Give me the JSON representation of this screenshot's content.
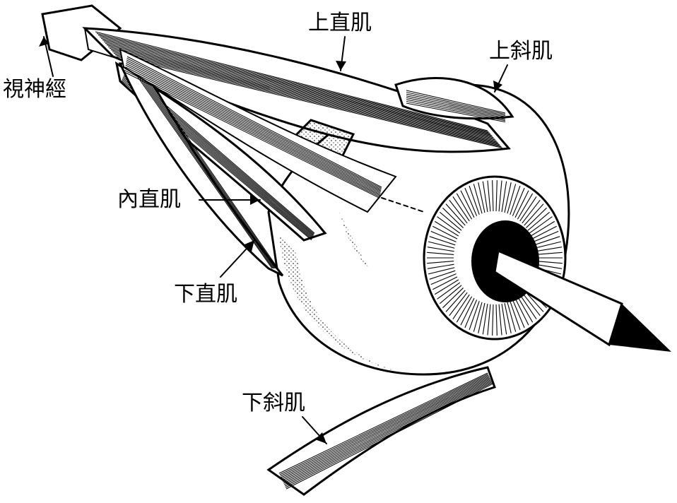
{
  "labels": {
    "optic_nerve": "視神經",
    "superior_rectus": "上直肌",
    "superior_oblique": "上斜肌",
    "medial_rectus": "內直肌",
    "inferior_rectus": "下直肌",
    "inferior_oblique": "下斜肌"
  }
}
